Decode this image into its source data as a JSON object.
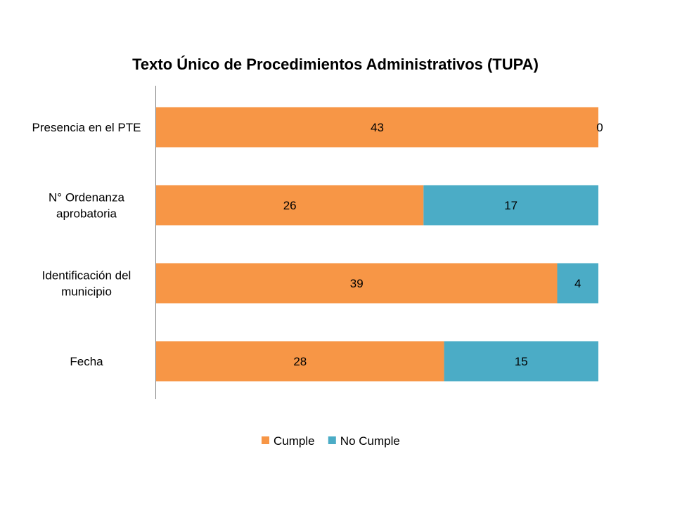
{
  "chart_data": {
    "type": "bar",
    "orientation": "horizontal",
    "stacked": true,
    "title": "Texto Único de Procedimientos Administrativos (TUPA)",
    "categories": [
      [
        "Presencia en el PTE"
      ],
      [
        "N° Ordenanza",
        "aprobatoria"
      ],
      [
        "Identificación del",
        "municipio"
      ],
      [
        "Fecha"
      ]
    ],
    "series": [
      {
        "name": "Cumple",
        "color": "#F79646",
        "values": [
          43,
          26,
          39,
          28
        ]
      },
      {
        "name": "No Cumple",
        "color": "#4BACC6",
        "values": [
          0,
          17,
          4,
          15
        ]
      }
    ],
    "xlim": [
      0,
      43
    ],
    "grid": false,
    "legend": "bottom"
  }
}
